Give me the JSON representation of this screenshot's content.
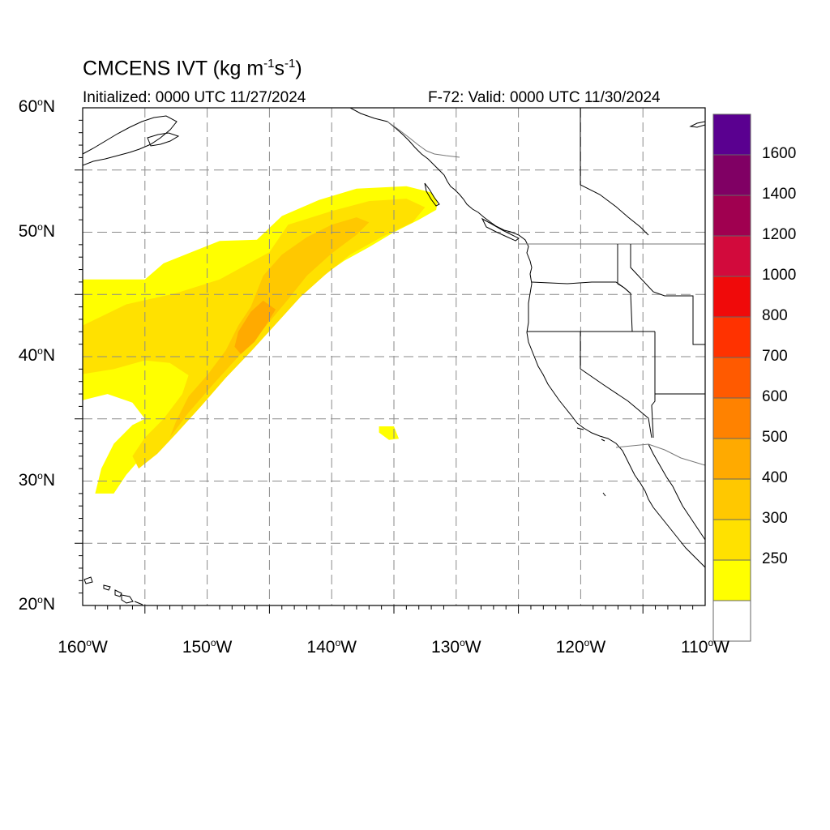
{
  "title": {
    "main": "CMCENS IVT (kg m",
    "exp1": "-1",
    "mid": "s",
    "exp2": "-1",
    "close": ")"
  },
  "subtitle_left": "Initialized: 0000 UTC 11/27/2024",
  "subtitle_right": "F-72: Valid: 0000 UTC 11/30/2024",
  "map": {
    "lon_range": [
      -160,
      -110
    ],
    "lat_range": [
      20,
      60
    ],
    "grid": true,
    "lat_ticks": [
      {
        "value": 60,
        "num": "60",
        "deg": "o",
        "hem": "N"
      },
      {
        "value": 50,
        "num": "50",
        "deg": "o",
        "hem": "N"
      },
      {
        "value": 40,
        "num": "40",
        "deg": "o",
        "hem": "N"
      },
      {
        "value": 30,
        "num": "30",
        "deg": "o",
        "hem": "N"
      },
      {
        "value": 20,
        "num": "20",
        "deg": "o",
        "hem": "N"
      }
    ],
    "lon_ticks": [
      {
        "value": -160,
        "num": "160",
        "deg": "o",
        "hem": "W"
      },
      {
        "value": -150,
        "num": "150",
        "deg": "o",
        "hem": "W"
      },
      {
        "value": -140,
        "num": "140",
        "deg": "o",
        "hem": "W"
      },
      {
        "value": -130,
        "num": "130",
        "deg": "o",
        "hem": "W"
      },
      {
        "value": -120,
        "num": "120",
        "deg": "o",
        "hem": "W"
      },
      {
        "value": -110,
        "num": "110",
        "deg": "o",
        "hem": "W"
      }
    ]
  },
  "colorbar": {
    "levels": [
      {
        "label": "250",
        "color": "#ffff00"
      },
      {
        "label": "300",
        "color": "#ffe100"
      },
      {
        "label": "400",
        "color": "#ffc800"
      },
      {
        "label": "500",
        "color": "#ffaa00"
      },
      {
        "label": "600",
        "color": "#ff8200"
      },
      {
        "label": "700",
        "color": "#ff5a00"
      },
      {
        "label": "800",
        "color": "#ff3200"
      },
      {
        "label": "1000",
        "color": "#f00a0a"
      },
      {
        "label": "1200",
        "color": "#d20a3c"
      },
      {
        "label": "1400",
        "color": "#a00050"
      },
      {
        "label": "1600",
        "color": "#800064"
      }
    ],
    "top_color": "#5a0090",
    "below_color": "#ffffff"
  },
  "ivt_field": [
    {
      "level": "250",
      "points": [
        [
          -160,
          46.2
        ],
        [
          -155,
          46.2
        ],
        [
          -153.5,
          47.5
        ],
        [
          -151,
          48.5
        ],
        [
          -149,
          49.3
        ],
        [
          -146,
          49.4
        ],
        [
          -144,
          51.3
        ],
        [
          -141,
          52.6
        ],
        [
          -138,
          53.5
        ],
        [
          -134,
          53.7
        ],
        [
          -132,
          53.2
        ],
        [
          -131.5,
          52.5
        ],
        [
          -131.6,
          51.8
        ],
        [
          -133,
          51
        ],
        [
          -135,
          50
        ],
        [
          -137,
          48.8
        ],
        [
          -139,
          47.7
        ],
        [
          -141,
          46.3
        ],
        [
          -143,
          44.4
        ],
        [
          -145,
          42.3
        ],
        [
          -147,
          40.2
        ],
        [
          -149.5,
          37.8
        ],
        [
          -152,
          35.5
        ],
        [
          -154.5,
          32.8
        ],
        [
          -156.5,
          30.5
        ],
        [
          -157.5,
          29
        ],
        [
          -159,
          29
        ],
        [
          -158.5,
          31
        ],
        [
          -157.5,
          33
        ],
        [
          -156,
          34.5
        ],
        [
          -155,
          35
        ],
        [
          -156,
          36.3
        ],
        [
          -158,
          37
        ],
        [
          -160,
          36.5
        ]
      ]
    },
    {
      "level": "300",
      "points": [
        [
          -160,
          42.5
        ],
        [
          -156.5,
          44.2
        ],
        [
          -152.5,
          45.1
        ],
        [
          -149,
          46.2
        ],
        [
          -145,
          48.4
        ],
        [
          -143.5,
          50.6
        ],
        [
          -140,
          51.7
        ],
        [
          -137,
          52.5
        ],
        [
          -134,
          52.7
        ],
        [
          -132.5,
          52
        ],
        [
          -133.5,
          50.8
        ],
        [
          -136,
          49.6
        ],
        [
          -138.5,
          48.2
        ],
        [
          -140.5,
          46.6
        ],
        [
          -142.5,
          44.8
        ],
        [
          -144.5,
          42.6
        ],
        [
          -146.5,
          40.4
        ],
        [
          -148.5,
          38.3
        ],
        [
          -150.5,
          36
        ],
        [
          -152.5,
          33.8
        ],
        [
          -154,
          32.2
        ],
        [
          -155.5,
          31
        ],
        [
          -156,
          32
        ],
        [
          -155,
          33.5
        ],
        [
          -153.5,
          35
        ],
        [
          -152,
          37
        ],
        [
          -151.5,
          38.5
        ],
        [
          -153,
          39.5
        ],
        [
          -155,
          39.7
        ],
        [
          -157.5,
          39
        ],
        [
          -160,
          38.6
        ]
      ]
    },
    {
      "level": "400",
      "points": [
        [
          -146.5,
          44
        ],
        [
          -145.5,
          46.5
        ],
        [
          -144,
          48.2
        ],
        [
          -142,
          49.6
        ],
        [
          -140,
          50.6
        ],
        [
          -138,
          51.2
        ],
        [
          -137,
          50.8
        ],
        [
          -138,
          49.8
        ],
        [
          -140,
          48.3
        ],
        [
          -142,
          46.5
        ],
        [
          -143.5,
          44.6
        ],
        [
          -145.5,
          42.2
        ],
        [
          -147.5,
          40
        ],
        [
          -149.5,
          37.8
        ],
        [
          -151.5,
          35.5
        ],
        [
          -153,
          33.5
        ],
        [
          -152.5,
          34.8
        ],
        [
          -151.5,
          36.8
        ],
        [
          -150,
          38.5
        ],
        [
          -148.5,
          40.5
        ],
        [
          -147.5,
          42.5
        ]
      ]
    },
    {
      "level": "500",
      "points": [
        [
          -147.5,
          42
        ],
        [
          -146.5,
          43.6
        ],
        [
          -145.5,
          44.5
        ],
        [
          -144.5,
          43.8
        ],
        [
          -145.3,
          42.5
        ],
        [
          -146.2,
          41.2
        ],
        [
          -147.3,
          40.2
        ],
        [
          -147.8,
          40.8
        ]
      ]
    },
    {
      "level": "250",
      "points": [
        [
          -136.2,
          34.4
        ],
        [
          -135,
          34.4
        ],
        [
          -134.6,
          33.4
        ],
        [
          -135.4,
          33.3
        ],
        [
          -136.2,
          33.9
        ]
      ]
    }
  ]
}
